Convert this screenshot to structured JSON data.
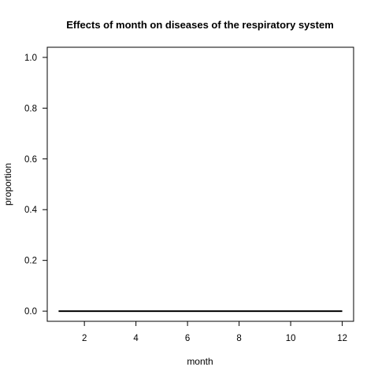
{
  "chart_data": {
    "type": "line",
    "title": "Effects of month on diseases of the respiratory system",
    "xlabel": "month",
    "ylabel": "proportion",
    "xlim": [
      0.56,
      12.44
    ],
    "ylim": [
      -0.04,
      1.04
    ],
    "xticks": [
      2,
      4,
      6,
      8,
      10,
      12
    ],
    "yticks": [
      0.0,
      0.2,
      0.4,
      0.6,
      0.8,
      1.0
    ],
    "xtick_labels": [
      "2",
      "4",
      "6",
      "8",
      "10",
      "12"
    ],
    "ytick_labels": [
      "0.0",
      "0.2",
      "0.4",
      "0.6",
      "0.8",
      "1.0"
    ],
    "grid": false,
    "series": [
      {
        "x": [
          1,
          2,
          3,
          4,
          5,
          6,
          7,
          8,
          9,
          10,
          11,
          12
        ],
        "values": [
          0,
          0,
          0,
          0,
          0,
          0,
          0,
          0,
          0,
          0,
          0,
          0
        ],
        "color": "#000000"
      }
    ]
  }
}
